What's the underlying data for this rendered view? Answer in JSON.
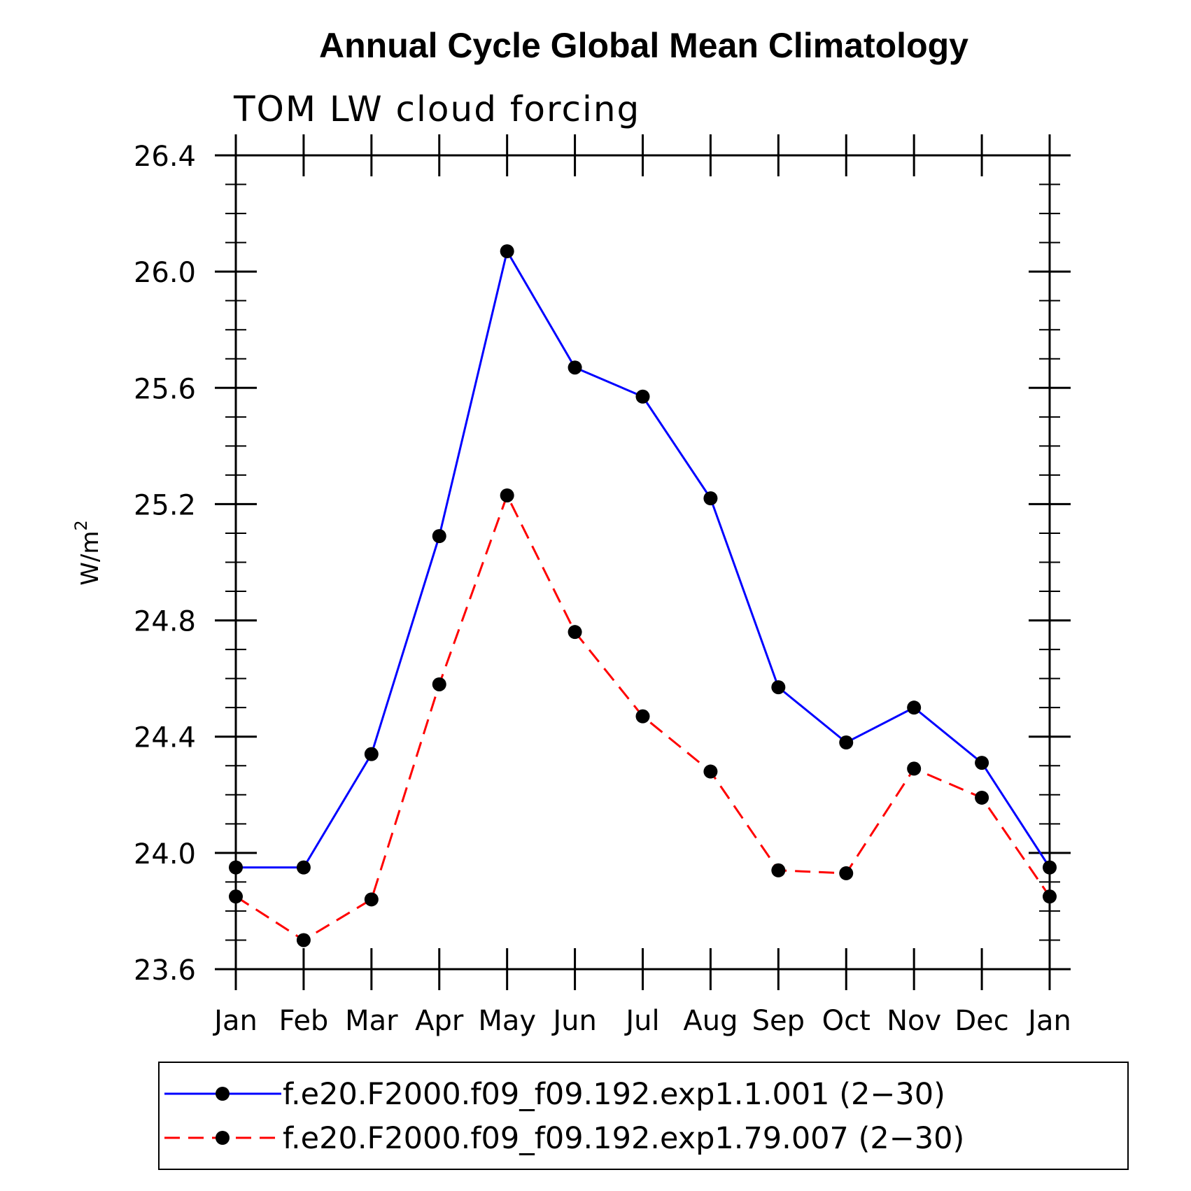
{
  "chart_data": {
    "type": "line",
    "title": "Annual Cycle Global Mean Climatology",
    "subtitle": "TOM LW cloud forcing",
    "ylabel": "W/m",
    "ylabel_superscript": "2",
    "xlabel": "",
    "categories": [
      "Jan",
      "Feb",
      "Mar",
      "Apr",
      "May",
      "Jun",
      "Jul",
      "Aug",
      "Sep",
      "Oct",
      "Nov",
      "Dec",
      "Jan"
    ],
    "ylim": [
      23.6,
      26.4
    ],
    "yticks": [
      "23.6",
      "24.0",
      "24.4",
      "24.8",
      "25.2",
      "25.6",
      "26.0",
      "26.4"
    ],
    "y_minor_step": 0.1,
    "grid": false,
    "legend_position": "bottom",
    "series": [
      {
        "name": "f.e20.F2000.f09_f09.192.exp1.1.001 (2−30)",
        "color": "#0000ff",
        "dash": "solid",
        "marker": "filled-circle",
        "values": [
          23.95,
          23.95,
          24.34,
          25.09,
          26.07,
          25.67,
          25.57,
          25.22,
          24.57,
          24.38,
          24.5,
          24.31,
          23.95
        ]
      },
      {
        "name": "f.e20.F2000.f09_f09.192.exp1.79.007 (2−30)",
        "color": "#ff0000",
        "dash": "dashed",
        "marker": "filled-circle",
        "values": [
          23.85,
          23.7,
          23.84,
          24.58,
          25.23,
          24.76,
          24.47,
          24.28,
          23.94,
          23.93,
          24.29,
          24.19,
          23.85
        ]
      }
    ]
  }
}
